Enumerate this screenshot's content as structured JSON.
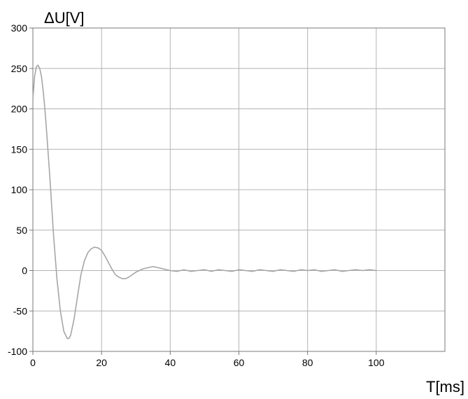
{
  "chart_data": {
    "type": "line",
    "xlabel": "T[ms]",
    "ylabel": "ΔU[V]",
    "xlim": [
      0,
      120
    ],
    "ylim": [
      -100,
      300
    ],
    "x_ticks": [
      0,
      20,
      40,
      60,
      80,
      100
    ],
    "x_tick_labels": [
      "0",
      "20",
      "40",
      "60",
      "80",
      "100"
    ],
    "y_ticks": [
      -100,
      -50,
      0,
      50,
      100,
      150,
      200,
      250,
      300
    ],
    "y_tick_labels": [
      "-100",
      "-50",
      "0",
      "50",
      "100",
      "150",
      "200",
      "250",
      "300"
    ],
    "grid": true,
    "series": [
      {
        "color": "#a6a6a6",
        "x": [
          0,
          0.5,
          1,
          1.5,
          2,
          2.5,
          3,
          3.5,
          4,
          5,
          6,
          7,
          8,
          9,
          10,
          10.5,
          11,
          12,
          13,
          14,
          15,
          16,
          17,
          18,
          19,
          20,
          21,
          22,
          23,
          24,
          25,
          26,
          27,
          28,
          29,
          30,
          31,
          32,
          33,
          34,
          35,
          36,
          37,
          38,
          39,
          40,
          42,
          44,
          46,
          48,
          50,
          52,
          54,
          56,
          58,
          60,
          62,
          64,
          66,
          68,
          70,
          72,
          74,
          76,
          78,
          80,
          82,
          84,
          86,
          88,
          90,
          92,
          94,
          96,
          98,
          100
        ],
        "y": [
          212,
          240,
          252,
          254,
          250,
          240,
          222,
          200,
          172,
          112,
          45,
          -10,
          -50,
          -75,
          -84,
          -84,
          -80,
          -60,
          -32,
          -5,
          12,
          22,
          27,
          29,
          28,
          25,
          18,
          10,
          2,
          -5,
          -8,
          -10,
          -10,
          -8,
          -5,
          -2,
          0,
          2,
          3,
          4,
          5,
          4,
          3,
          2,
          1,
          0,
          -1,
          1,
          -1,
          0,
          1,
          -1,
          1,
          0,
          -1,
          1,
          0,
          -1,
          1,
          0,
          -1,
          1,
          0,
          -1,
          1,
          0,
          1,
          -1,
          0,
          1,
          -1,
          0,
          1,
          0,
          1,
          0
        ]
      }
    ]
  }
}
